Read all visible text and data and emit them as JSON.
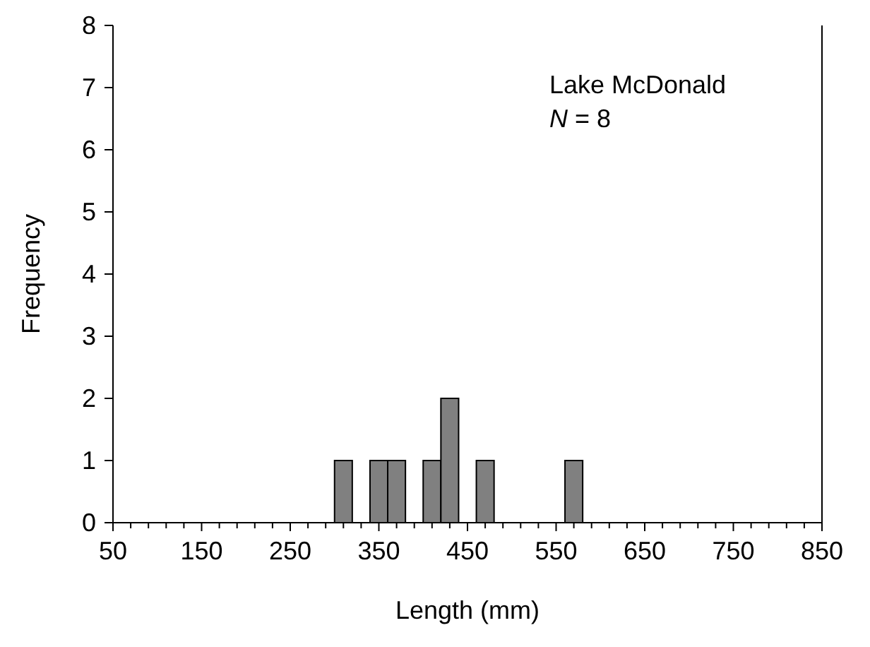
{
  "chart_data": {
    "type": "histogram",
    "xlabel": "Length (mm)",
    "ylabel": "Frequency",
    "annotations": [
      "Lake McDonald",
      "N = 8"
    ],
    "bins": [
      300,
      320,
      340,
      360,
      380,
      400,
      420,
      440,
      460,
      480,
      500,
      520,
      540,
      560,
      580
    ],
    "values": [
      1,
      0,
      1,
      1,
      0,
      1,
      2,
      0,
      1,
      0,
      0,
      0,
      0,
      1
    ],
    "color": "#808080",
    "xlim": [
      50,
      850
    ],
    "xticks": [
      50,
      {
        "value": 70,
        "label": null
      },
      {
        "value": 90,
        "label": null
      },
      {
        "value": 110,
        "label": null
      },
      {
        "value": 130,
        "label": null
      },
      150,
      {
        "value": 170,
        "label": null
      },
      {
        "value": 190,
        "label": null
      },
      {
        "value": 210,
        "label": null
      },
      {
        "value": 230,
        "label": null
      },
      250,
      {
        "value": 270,
        "label": null
      },
      {
        "value": 290,
        "label": null
      },
      {
        "value": 310,
        "label": null
      },
      {
        "value": 330,
        "label": null
      },
      350,
      {
        "value": 370,
        "label": null
      },
      {
        "value": 390,
        "label": null
      },
      {
        "value": 410,
        "label": null
      },
      {
        "value": 430,
        "label": null
      },
      450,
      {
        "value": 470,
        "label": null
      },
      {
        "value": 490,
        "label": null
      },
      {
        "value": 510,
        "label": null
      },
      {
        "value": 530,
        "label": null
      },
      550,
      {
        "value": 570,
        "label": null
      },
      {
        "value": 590,
        "label": null
      },
      {
        "value": 610,
        "label": null
      },
      {
        "value": 630,
        "label": null
      },
      650,
      {
        "value": 670,
        "label": null
      },
      {
        "value": 690,
        "label": null
      },
      {
        "value": 710,
        "label": null
      },
      {
        "value": 730,
        "label": null
      },
      750,
      {
        "value": 770,
        "label": null
      },
      {
        "value": 790,
        "label": null
      },
      {
        "value": 810,
        "label": null
      },
      {
        "value": 830,
        "label": null
      },
      850
    ],
    "ylim": [
      0,
      8
    ],
    "yticks": [
      0,
      1,
      2,
      3,
      4,
      5,
      6,
      7,
      8
    ],
    "grid": false
  }
}
